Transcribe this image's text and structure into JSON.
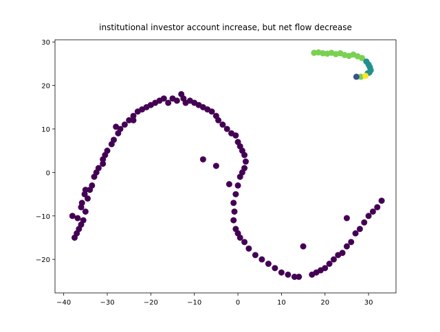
{
  "chart_data": {
    "type": "scatter",
    "title": "institutional investor account increase, but net flow decrease",
    "xlim": [
      -42,
      36.3
    ],
    "ylim": [
      -27.7,
      30.5
    ],
    "xticks": [
      {
        "value": -40,
        "label": "−40"
      },
      {
        "value": -30,
        "label": "−30"
      },
      {
        "value": -20,
        "label": "−20"
      },
      {
        "value": -10,
        "label": "−10"
      },
      0,
      10,
      20,
      30
    ],
    "yticks": [
      {
        "value": -20,
        "label": "−20"
      },
      {
        "value": -10,
        "label": "−10"
      },
      0,
      10,
      20,
      30
    ],
    "series": [
      {
        "color": "#440154",
        "x": [
          -37,
          -36.5,
          -36,
          -37.5,
          -35.5,
          -36.8,
          -35,
          -36,
          -35.8,
          -34.5,
          -35.2,
          -34,
          -33.5,
          -33,
          -32,
          -32.5,
          -31,
          -30.5,
          -30,
          -29,
          -28.5,
          -27.5,
          -27,
          -26,
          -25,
          -24,
          -23,
          -22,
          -21,
          -20,
          -19,
          -18,
          -17,
          -16,
          -15,
          -14,
          -13,
          -12.5,
          -12,
          -11,
          -10,
          -9,
          -8,
          -7,
          -6,
          -5,
          -4.5,
          -3.5,
          -2.5,
          -1.5,
          -0.5,
          0,
          0.5,
          1,
          1.5,
          1.8,
          1.5,
          1,
          0.5,
          0,
          -0.5,
          -1,
          -0.8,
          -1,
          -0.5,
          0,
          0.5,
          1.5,
          2.5,
          4,
          5.5,
          7,
          8.5,
          10,
          11.5,
          13,
          14,
          17,
          18,
          19,
          20,
          21,
          22,
          23,
          24,
          25,
          26,
          27,
          28,
          29,
          30,
          31,
          32,
          33,
          -38,
          -8,
          -5,
          -2,
          25,
          15,
          -28,
          -24,
          -31,
          -35
        ],
        "y": [
          -14,
          -13,
          -12,
          -15,
          -11,
          -10.5,
          -9,
          -8,
          -7,
          -6,
          -5,
          -4,
          -3,
          -1,
          1,
          0,
          3,
          4,
          5,
          6.5,
          7.5,
          9,
          10,
          11,
          12,
          13,
          14,
          14.5,
          15,
          15.5,
          16,
          16.5,
          17,
          16,
          17,
          16.5,
          18,
          17,
          16,
          16.5,
          16,
          15.5,
          15,
          14.5,
          14,
          13,
          12,
          11,
          10,
          9,
          8.5,
          7,
          6,
          5,
          4,
          2.5,
          1,
          0,
          -1,
          -3,
          -5,
          -7,
          -9,
          -11,
          -13,
          -14,
          -15,
          -16,
          -17.5,
          -19,
          -20,
          -21,
          -22,
          -23,
          -23.5,
          -24,
          -24,
          -23.5,
          -23,
          -22.5,
          -22,
          -21,
          -20,
          -19,
          -18.5,
          -17,
          -16,
          -14,
          -13,
          -11.5,
          -10,
          -9,
          -8,
          -6.5,
          -10,
          3,
          1.5,
          -2.7,
          -10.5,
          -17,
          10.5,
          12,
          2,
          -4
        ]
      },
      {
        "color": "#7ad151",
        "x": [
          17.5,
          18.5,
          19.5,
          20.5,
          21.5,
          22.5,
          23.5,
          24.5,
          25.5,
          26.5,
          27.5,
          28.5,
          28.2
        ],
        "y": [
          27.5,
          27.6,
          27.4,
          27.3,
          27.5,
          27.2,
          27.4,
          27.0,
          26.8,
          27.1,
          26.7,
          26.3,
          22
        ]
      },
      {
        "color": "#21918c",
        "x": [
          29.5,
          30,
          30.3,
          30.5,
          30.2,
          29.8
        ],
        "y": [
          25.5,
          24.8,
          24.2,
          23.5,
          23,
          22.8
        ]
      },
      {
        "color": "#3b528b",
        "x": [
          27.2
        ],
        "y": [
          22
        ]
      },
      {
        "color": "#fde725",
        "x": [
          29.3
        ],
        "y": [
          22.2
        ]
      }
    ]
  }
}
